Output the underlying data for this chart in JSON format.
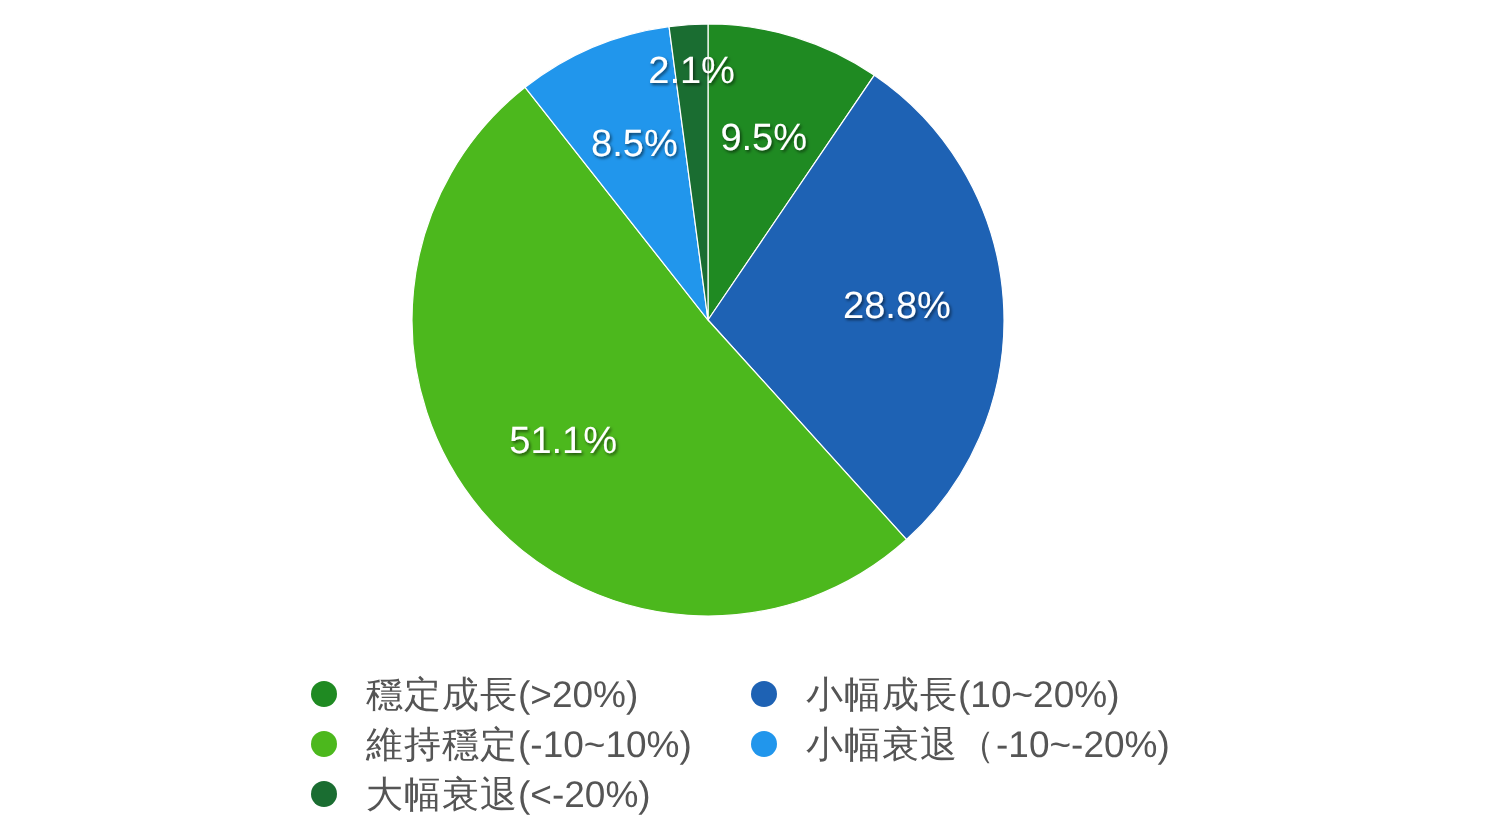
{
  "chart_data": {
    "type": "pie",
    "categories": [
      "穩定成長(>20%)",
      "小幅成長(10~20%)",
      "維持穩定(-10~10%)",
      "小幅衰退（-10~-20%)",
      "大幅衰退(<-20%)"
    ],
    "values": [
      9.5,
      28.8,
      51.1,
      8.5,
      2.1
    ],
    "value_labels": [
      "9.5%",
      "28.8%",
      "51.1%",
      "8.5%",
      "2.1%"
    ],
    "colors": [
      "#1f8a22",
      "#1e62b4",
      "#4cb81d",
      "#2196ec",
      "#1a6d31"
    ],
    "legend": "bottom"
  }
}
